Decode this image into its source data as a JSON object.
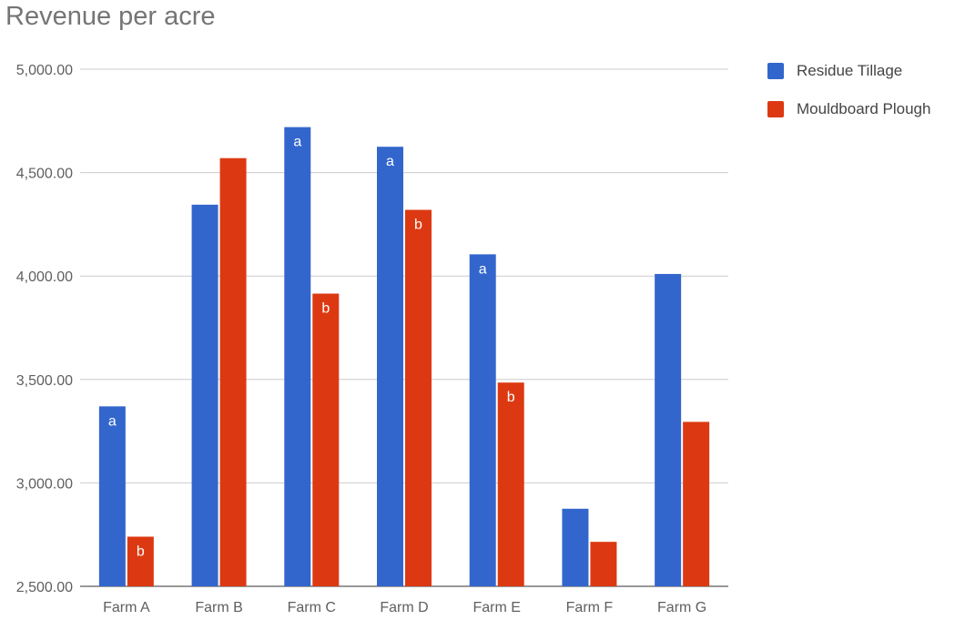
{
  "chart_data": {
    "type": "bar",
    "title": "Revenue per acre",
    "xlabel": "",
    "ylabel": "",
    "categories": [
      "Farm A",
      "Farm B",
      "Farm C",
      "Farm D",
      "Farm E",
      "Farm F",
      "Farm G"
    ],
    "series": [
      {
        "name": "Residue Tillage",
        "color": "#3366cc",
        "values": [
          3370,
          4345,
          4720,
          4625,
          4105,
          2875,
          4010
        ],
        "annotations": [
          "a",
          "",
          "a",
          "a",
          "a",
          "",
          ""
        ]
      },
      {
        "name": "Mouldboard Plough",
        "color": "#dc3912",
        "values": [
          2740,
          4570,
          3915,
          4320,
          3485,
          2715,
          3295
        ],
        "annotations": [
          "b",
          "",
          "b",
          "b",
          "b",
          "",
          ""
        ]
      }
    ],
    "ylim": [
      2500,
      5000
    ],
    "yticks": [
      2500,
      3000,
      3500,
      4000,
      4500,
      5000
    ],
    "ytick_labels": [
      "2,500.00",
      "3,000.00",
      "3,500.00",
      "4,000.00",
      "4,500.00",
      "5,000.00"
    ],
    "grid": true,
    "legend_position": "right"
  }
}
